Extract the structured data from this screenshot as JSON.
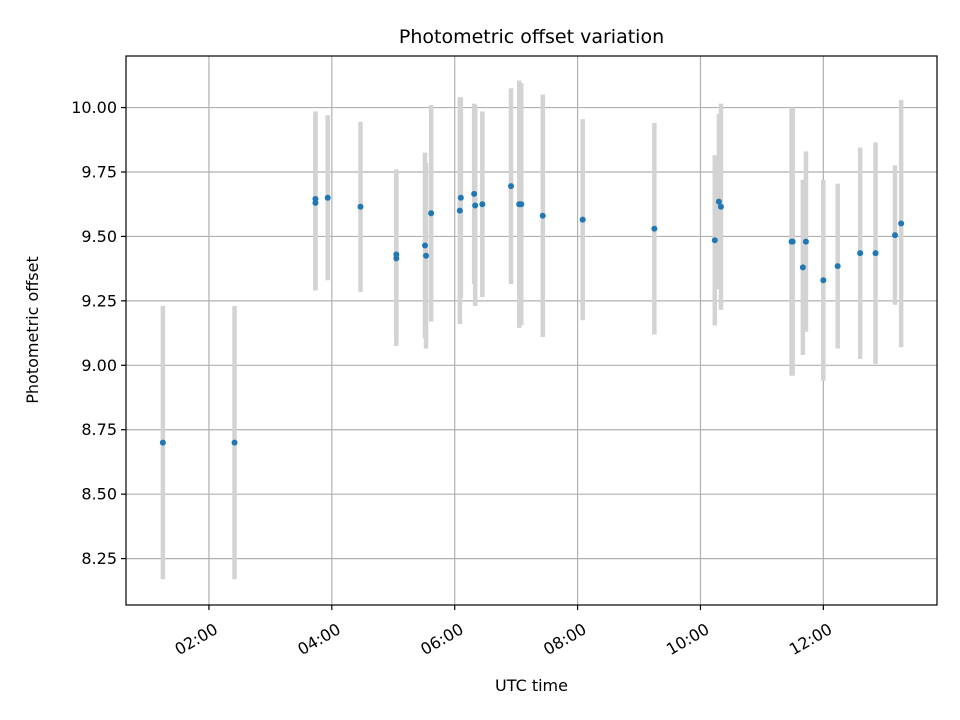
{
  "chart_data": {
    "type": "scatter",
    "title": "Photometric offset variation",
    "xlabel": "UTC time",
    "ylabel": "Photometric offset",
    "x_ticks": [
      "02:00",
      "04:00",
      "06:00",
      "08:00",
      "10:00",
      "12:00"
    ],
    "y_ticks": [
      "8.25",
      "8.50",
      "8.75",
      "9.00",
      "9.25",
      "9.50",
      "9.75",
      "10.00"
    ],
    "xlim": [
      "00:39",
      "13:51"
    ],
    "ylim": [
      8.07,
      10.2
    ],
    "grid": true,
    "series": [
      {
        "marker_color": "#1f77b4",
        "errorbar_color": "#d3d3d3",
        "points": [
          {
            "x": "01:15",
            "y": 8.7,
            "err": 0.53
          },
          {
            "x": "02:25",
            "y": 8.7,
            "err": 0.53
          },
          {
            "x": "03:44",
            "y": 9.63,
            "err": 0.34
          },
          {
            "x": "03:44",
            "y": 9.645,
            "err": 0.34
          },
          {
            "x": "03:56",
            "y": 9.65,
            "err": 0.32
          },
          {
            "x": "04:28",
            "y": 9.615,
            "err": 0.33
          },
          {
            "x": "05:03",
            "y": 9.43,
            "err": 0.33
          },
          {
            "x": "05:03",
            "y": 9.415,
            "err": 0.34
          },
          {
            "x": "05:31",
            "y": 9.465,
            "err": 0.36
          },
          {
            "x": "05:32",
            "y": 9.425,
            "err": 0.36
          },
          {
            "x": "05:37",
            "y": 9.59,
            "err": 0.42
          },
          {
            "x": "06:05",
            "y": 9.6,
            "err": 0.44
          },
          {
            "x": "06:06",
            "y": 9.65,
            "err": 0.39
          },
          {
            "x": "06:19",
            "y": 9.665,
            "err": 0.35
          },
          {
            "x": "06:20",
            "y": 9.62,
            "err": 0.39
          },
          {
            "x": "06:27",
            "y": 9.625,
            "err": 0.36
          },
          {
            "x": "06:55",
            "y": 9.695,
            "err": 0.38
          },
          {
            "x": "07:03",
            "y": 9.625,
            "err": 0.48
          },
          {
            "x": "07:05",
            "y": 9.625,
            "err": 0.47
          },
          {
            "x": "07:26",
            "y": 9.58,
            "err": 0.47
          },
          {
            "x": "08:05",
            "y": 9.565,
            "err": 0.39
          },
          {
            "x": "09:15",
            "y": 9.53,
            "err": 0.41
          },
          {
            "x": "10:14",
            "y": 9.485,
            "err": 0.33
          },
          {
            "x": "10:18",
            "y": 9.635,
            "err": 0.34
          },
          {
            "x": "10:20",
            "y": 9.615,
            "err": 0.4
          },
          {
            "x": "11:29",
            "y": 9.48,
            "err": 0.52
          },
          {
            "x": "11:30",
            "y": 9.48,
            "err": 0.52
          },
          {
            "x": "11:40",
            "y": 9.38,
            "err": 0.34
          },
          {
            "x": "11:43",
            "y": 9.48,
            "err": 0.35
          },
          {
            "x": "12:00",
            "y": 9.33,
            "err": 0.39
          },
          {
            "x": "12:14",
            "y": 9.385,
            "err": 0.32
          },
          {
            "x": "12:36",
            "y": 9.435,
            "err": 0.41
          },
          {
            "x": "12:51",
            "y": 9.435,
            "err": 0.43
          },
          {
            "x": "13:10",
            "y": 9.505,
            "err": 0.27
          },
          {
            "x": "13:16",
            "y": 9.55,
            "err": 0.48
          }
        ]
      }
    ]
  }
}
